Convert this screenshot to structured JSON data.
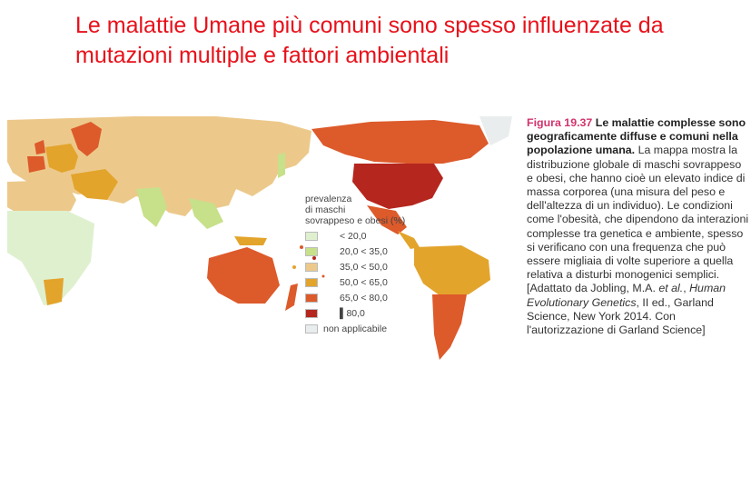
{
  "slide": {
    "title_line1": "Le malattie Umane più comuni sono spesso influenzate da",
    "title_line2": "mutazioni multiple e fattori ambientali"
  },
  "legend": {
    "title_line1": "prevalenza",
    "title_line2": "di maschi",
    "title_line3": "sovrappeso e obesi (%)",
    "items": [
      {
        "label": "< 20,0",
        "color": "#dff0cf"
      },
      {
        "label": "20,0 < 35,0",
        "color": "#c7e08a"
      },
      {
        "label": "35,0 < 50,0",
        "color": "#ecc98b"
      },
      {
        "label": "50,0 < 65,0",
        "color": "#e3a42c"
      },
      {
        "label": "65,0 < 80,0",
        "color": "#dd5a2b"
      },
      {
        "label": "80,0",
        "color": "#b5261e"
      },
      {
        "label": "non applicabile",
        "color": "#e9eded"
      }
    ]
  },
  "caption": {
    "figure_number": "Figura 19.37",
    "bold_title": "Le malattie complesse sono geograficamente diffuse e comuni nella popolazione umana.",
    "body_1": "La mappa mostra la distribuzione globale di maschi sovrappeso e obesi, che hanno cioè un elevato indice di massa corporea (una misura del peso e dell'altezza di un individuo). Le condizioni come l'obesità, che dipendono da interazioni complesse tra genetica e ambiente, spesso si verificano con una frequenza che può essere migliaia di volte superiore a quella relativa a disturbi monogenici semplici. [Adattato da Jobling, M.A. ",
    "italic_1": "et al.",
    "body_2": ", ",
    "italic_2": "Human Evolutionary Genetics",
    "body_3": ", II ed., Garland Science, New York 2014. Con l'autorizzazione di Garland Science]"
  }
}
